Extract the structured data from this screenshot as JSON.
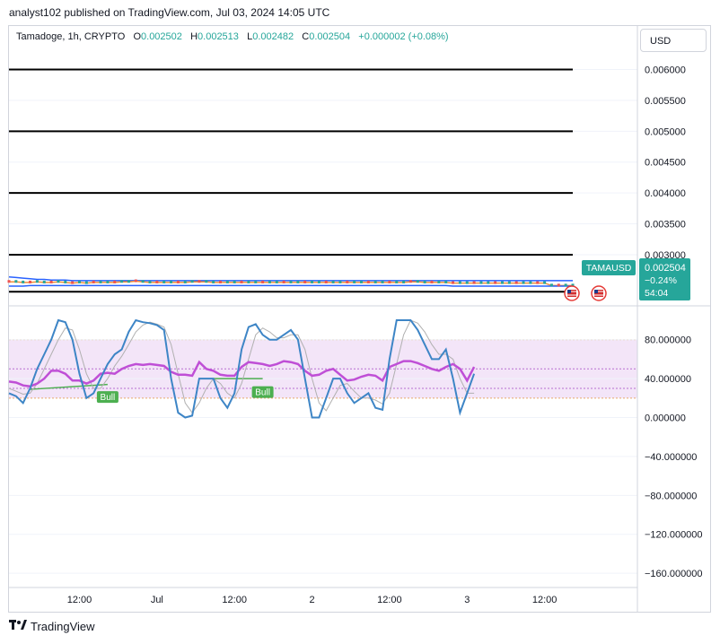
{
  "header": {
    "publish_line": "analyst102 published on TradingView.com, Jul 03, 2024 14:05 UTC"
  },
  "symbol": {
    "name": "Tamadoge, 1h, CRYPTO",
    "o_label": "O",
    "o_value": "0.002502",
    "h_label": "H",
    "h_value": "0.002513",
    "l_label": "L",
    "l_value": "0.002482",
    "c_label": "C",
    "c_value": "0.002504",
    "change": "+0.000002 (+0.08%)"
  },
  "currency_button": "USD",
  "price_tag": {
    "ticker": "TAMAUSD",
    "price": "0.002504",
    "change_pct": "−0.24%",
    "countdown": "54:04"
  },
  "colors": {
    "up": "#26a69a",
    "tag_bg": "#26a69a",
    "stoch_k": "#3d85c6",
    "stoch_d": "#b0b0b0",
    "rsi": "#bf4fd6",
    "rsi_band": "#f3e5f8",
    "bull_label": "#4caf50",
    "bollinger": "#2962ff"
  },
  "footer": {
    "brand": "TradingView"
  },
  "chart_data": [
    {
      "type": "line",
      "panel": "price",
      "ylim": [
        0.0022,
        0.0064
      ],
      "yticks": [
        0.006,
        0.0055,
        0.005,
        0.0045,
        0.004,
        0.0035,
        0.003
      ],
      "ytick_labels": [
        "0.006000",
        "0.005500",
        "0.005000",
        "0.004500",
        "0.004000",
        "0.003500",
        "0.003000"
      ],
      "horizontal_levels": [
        0.006,
        0.005,
        0.004,
        0.003,
        0.0024
      ],
      "x": [
        0,
        1,
        2,
        3,
        4,
        5,
        6,
        7,
        8,
        9,
        10,
        11,
        12,
        13,
        14,
        15,
        16,
        17,
        18,
        19,
        20,
        21,
        22,
        23,
        24,
        25,
        26,
        27,
        28,
        29,
        30,
        31,
        32,
        33,
        34,
        35,
        36,
        37,
        38,
        39,
        40,
        41,
        42,
        43,
        44,
        45,
        46,
        47,
        48,
        49,
        50,
        51,
        52,
        53,
        54,
        55,
        56,
        57,
        58,
        59,
        60,
        61,
        62,
        63,
        64,
        65,
        66,
        67,
        68,
        69,
        70,
        71,
        72,
        73,
        74,
        75,
        76,
        77,
        78,
        79,
        80
      ],
      "series": [
        {
          "name": "",
          "role": "bollinger-upper",
          "values": [
            0.00264,
            0.00263,
            0.00262,
            0.00261,
            0.0026,
            0.0026,
            0.00259,
            0.00259,
            0.00259,
            0.00258,
            0.00258,
            0.00258,
            0.00258,
            0.00258,
            0.00258,
            0.00258,
            0.00258,
            0.00258,
            0.00258,
            0.00258,
            0.00258,
            0.00258,
            0.00258,
            0.00258,
            0.00258,
            0.00258,
            0.00258,
            0.00258,
            0.00258,
            0.00258,
            0.00258,
            0.00258,
            0.00258,
            0.00258,
            0.00258,
            0.00258,
            0.00258,
            0.00258,
            0.00258,
            0.00258,
            0.00258,
            0.00258,
            0.00258,
            0.00258,
            0.00258,
            0.00258,
            0.00258,
            0.00258,
            0.00258,
            0.00258,
            0.00258,
            0.00258,
            0.00258,
            0.00258,
            0.00258,
            0.00258,
            0.00258,
            0.00258,
            0.00258,
            0.00258,
            0.00258,
            0.00258,
            0.00258,
            0.00258,
            0.00258,
            0.00258,
            0.00258,
            0.00258,
            0.00258,
            0.00258,
            0.00258,
            0.00258,
            0.00258,
            0.00258,
            0.00258,
            0.00258,
            0.00258,
            0.00258,
            0.00258,
            0.00258,
            0.00258
          ]
        },
        {
          "name": "",
          "role": "close",
          "values": [
            0.00256,
            0.00256,
            0.00255,
            0.00255,
            0.00256,
            0.00255,
            0.00255,
            0.00256,
            0.00255,
            0.00254,
            0.00255,
            0.00254,
            0.00255,
            0.00255,
            0.00255,
            0.00255,
            0.00256,
            0.00256,
            0.00257,
            0.00256,
            0.00255,
            0.00255,
            0.00255,
            0.00255,
            0.00255,
            0.00255,
            0.00256,
            0.00256,
            0.00256,
            0.00255,
            0.00255,
            0.00255,
            0.00255,
            0.00255,
            0.00255,
            0.00255,
            0.00255,
            0.00255,
            0.00255,
            0.00255,
            0.00255,
            0.00255,
            0.00255,
            0.00255,
            0.00255,
            0.00255,
            0.00255,
            0.00255,
            0.00255,
            0.00255,
            0.00255,
            0.00255,
            0.00255,
            0.00255,
            0.00255,
            0.00255,
            0.00255,
            0.00256,
            0.00256,
            0.00255,
            0.00255,
            0.00255,
            0.00255,
            0.00254,
            0.00254,
            0.00254,
            0.00254,
            0.00254,
            0.00254,
            0.00254,
            0.00254,
            0.00254,
            0.00254,
            0.00254,
            0.00254,
            0.00254,
            0.00254,
            0.0025,
            0.0025,
            0.0025,
            0.0025
          ]
        },
        {
          "name": "",
          "role": "bollinger-lower",
          "values": [
            0.00249,
            0.00249,
            0.00249,
            0.0025,
            0.0025,
            0.0025,
            0.0025,
            0.0025,
            0.0025,
            0.0025,
            0.0025,
            0.0025,
            0.0025,
            0.0025,
            0.0025,
            0.0025,
            0.0025,
            0.0025,
            0.0025,
            0.0025,
            0.0025,
            0.0025,
            0.0025,
            0.0025,
            0.0025,
            0.0025,
            0.0025,
            0.0025,
            0.0025,
            0.0025,
            0.0025,
            0.0025,
            0.0025,
            0.0025,
            0.0025,
            0.0025,
            0.0025,
            0.0025,
            0.0025,
            0.0025,
            0.0025,
            0.0025,
            0.0025,
            0.0025,
            0.0025,
            0.0025,
            0.0025,
            0.0025,
            0.0025,
            0.0025,
            0.0025,
            0.0025,
            0.0025,
            0.0025,
            0.0025,
            0.0025,
            0.0025,
            0.0025,
            0.0025,
            0.0025,
            0.0025,
            0.0025,
            0.0025,
            0.00249,
            0.00249,
            0.00249,
            0.00249,
            0.00249,
            0.00249,
            0.00249,
            0.00249,
            0.00249,
            0.00249,
            0.00249,
            0.00249,
            0.00249,
            0.00249,
            0.00249,
            0.00249,
            0.00249,
            0.00249
          ]
        }
      ]
    },
    {
      "type": "line",
      "panel": "stochastic-rsi",
      "ylim": [
        -170,
        112
      ],
      "yticks": [
        80,
        40,
        0,
        -40,
        -80,
        -120,
        -160
      ],
      "ytick_labels": [
        "80.000000",
        "40.000000",
        "0.000000",
        "−40.000000",
        "−80.000000",
        "−120.000000",
        "−160.000000"
      ],
      "band": [
        20,
        80
      ],
      "x_tick_labels": [
        "12:00",
        "Jul",
        "12:00",
        "2",
        "12:00",
        "3",
        "12:00"
      ],
      "x_tick_positions": [
        10,
        21,
        32,
        43,
        54,
        65,
        76
      ],
      "xlim": [
        0,
        80
      ],
      "annotations": [
        {
          "text": "Bull",
          "x": 14,
          "y": 29
        },
        {
          "text": "Bull",
          "x": 36,
          "y": 34
        }
      ],
      "series": [
        {
          "name": "",
          "role": "stoch-k",
          "values": [
            25,
            22,
            15,
            30,
            50,
            65,
            80,
            100,
            98,
            80,
            45,
            20,
            25,
            40,
            55,
            65,
            70,
            88,
            100,
            98,
            97,
            95,
            90,
            40,
            5,
            0,
            2,
            40,
            40,
            40,
            20,
            10,
            25,
            70,
            93,
            96,
            85,
            80,
            80,
            85,
            90,
            80,
            40,
            0,
            0,
            20,
            40,
            40,
            25,
            15,
            20,
            25,
            10,
            8,
            60,
            100,
            100,
            100,
            90,
            75,
            60,
            60,
            70,
            40,
            5,
            25,
            45,
            null,
            null,
            null,
            null,
            null,
            null,
            null,
            null,
            null,
            null,
            null,
            null,
            null,
            null
          ]
        },
        {
          "name": "",
          "role": "stoch-d",
          "values": [
            30,
            27,
            24,
            25,
            35,
            50,
            65,
            80,
            92,
            90,
            70,
            45,
            30,
            30,
            40,
            53,
            63,
            75,
            88,
            95,
            98,
            96,
            93,
            75,
            45,
            15,
            5,
            15,
            30,
            40,
            35,
            25,
            20,
            35,
            60,
            85,
            92,
            88,
            82,
            82,
            85,
            85,
            70,
            40,
            15,
            7,
            20,
            33,
            35,
            27,
            20,
            20,
            18,
            14,
            25,
            55,
            85,
            100,
            97,
            88,
            75,
            65,
            65,
            60,
            40,
            25,
            25,
            null,
            null,
            null,
            null,
            null,
            null,
            null,
            null,
            null,
            null,
            null,
            null,
            null,
            null
          ]
        },
        {
          "name": "",
          "role": "rsi",
          "values": [
            37,
            36,
            33,
            32,
            35,
            40,
            48,
            48,
            45,
            38,
            38,
            35,
            38,
            45,
            46,
            45,
            50,
            53,
            55,
            54,
            55,
            54,
            53,
            47,
            44,
            44,
            43,
            57,
            50,
            48,
            44,
            43,
            43,
            52,
            57,
            56,
            55,
            53,
            55,
            58,
            57,
            55,
            48,
            43,
            44,
            48,
            50,
            44,
            38,
            39,
            42,
            44,
            43,
            38,
            52,
            55,
            58,
            58,
            56,
            53,
            50,
            48,
            52,
            55,
            50,
            38,
            52,
            null,
            null,
            null,
            null,
            null,
            null,
            null,
            null,
            null,
            null,
            null,
            null,
            null,
            null
          ]
        }
      ]
    }
  ]
}
